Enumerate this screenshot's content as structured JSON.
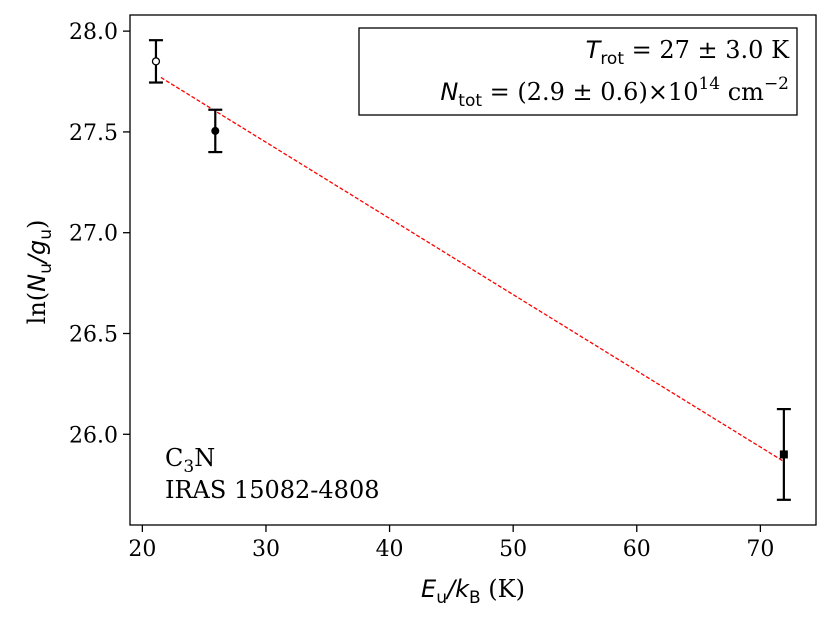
{
  "chart_data": {
    "type": "scatter",
    "xlabel_main": "E",
    "xlabel_sub1": "u",
    "xlabel_sep": "/",
    "xlabel_k": "k",
    "xlabel_sub2": "B",
    "xlabel_unit": " (K)",
    "ylabel_pre": "ln(",
    "ylabel_N": "N",
    "ylabel_sub1": "u",
    "ylabel_sep": "/",
    "ylabel_g": "g",
    "ylabel_sub2": "u",
    "ylabel_post": ")",
    "xlim": [
      19,
      74.5
    ],
    "ylim": [
      25.55,
      28.08
    ],
    "xticks": [
      20,
      30,
      40,
      50,
      60,
      70
    ],
    "yticks": [
      26.0,
      26.5,
      27.0,
      27.5,
      28.0
    ],
    "xtick_labels": [
      "20",
      "30",
      "40",
      "50",
      "60",
      "70"
    ],
    "ytick_labels": [
      "26.0",
      "26.5",
      "27.0",
      "27.5",
      "28.0"
    ],
    "points": [
      {
        "x": 21.1,
        "y": 27.85,
        "yerr": 0.105,
        "marker": "open-circle"
      },
      {
        "x": 25.9,
        "y": 27.505,
        "yerr": 0.105,
        "marker": "filled-circle"
      },
      {
        "x": 71.9,
        "y": 25.9,
        "yerr": 0.225,
        "marker": "filled-square"
      }
    ],
    "fit_line": {
      "x": [
        21.5,
        71.9
      ],
      "y": [
        27.77,
        25.865
      ],
      "color": "#ff0000",
      "style": "dashed"
    },
    "legend": {
      "placement": "top-right",
      "line1_T": "T",
      "line1_sub": "rot",
      "line1_text": " = 27 ± 3.0 K",
      "line2_N": "N",
      "line2_sub": "tot",
      "line2_text": " = (2.9 ± 0.6)×10",
      "line2_exp": "14",
      "line2_unit": " cm",
      "line2_unit_exp": "−2"
    },
    "annotation": {
      "line1_C": "C",
      "line1_sub": "3",
      "line1_N": "N",
      "line2": "IRAS 15082-4808"
    }
  }
}
